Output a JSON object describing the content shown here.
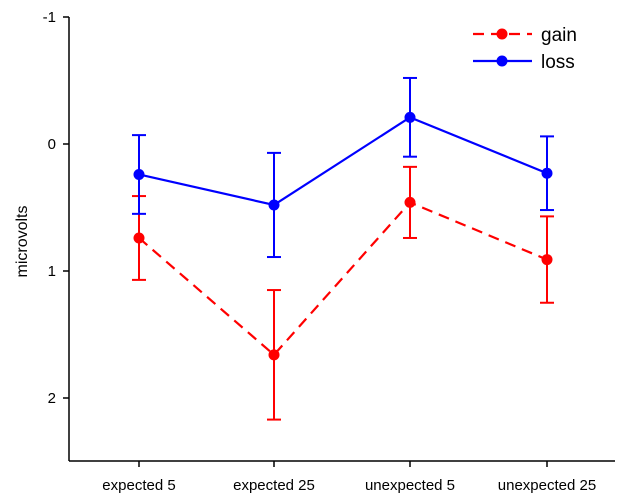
{
  "chart_data": {
    "type": "line",
    "title": "",
    "xlabel": "",
    "ylabel": "microvolts",
    "categories": [
      "expected 5",
      "expected 25",
      "unexpected 5",
      "unexpected 25"
    ],
    "y_ticks": [
      -1,
      0,
      1,
      2
    ],
    "y_tick_labels": [
      "-1",
      "0",
      "1",
      "2"
    ],
    "ylim": [
      -1,
      2.5
    ],
    "y_axis_inverted": true,
    "grid": false,
    "legend_position": "top-right",
    "series": [
      {
        "name": "gain",
        "color": "#ff0000",
        "line_style": "dashed",
        "values": [
          0.74,
          1.66,
          0.46,
          0.91
        ],
        "error": [
          0.33,
          0.51,
          0.28,
          0.34
        ]
      },
      {
        "name": "loss",
        "color": "#0000ff",
        "line_style": "solid",
        "values": [
          0.24,
          0.48,
          -0.21,
          0.23
        ],
        "error": [
          0.31,
          0.41,
          0.31,
          0.29
        ]
      }
    ]
  }
}
